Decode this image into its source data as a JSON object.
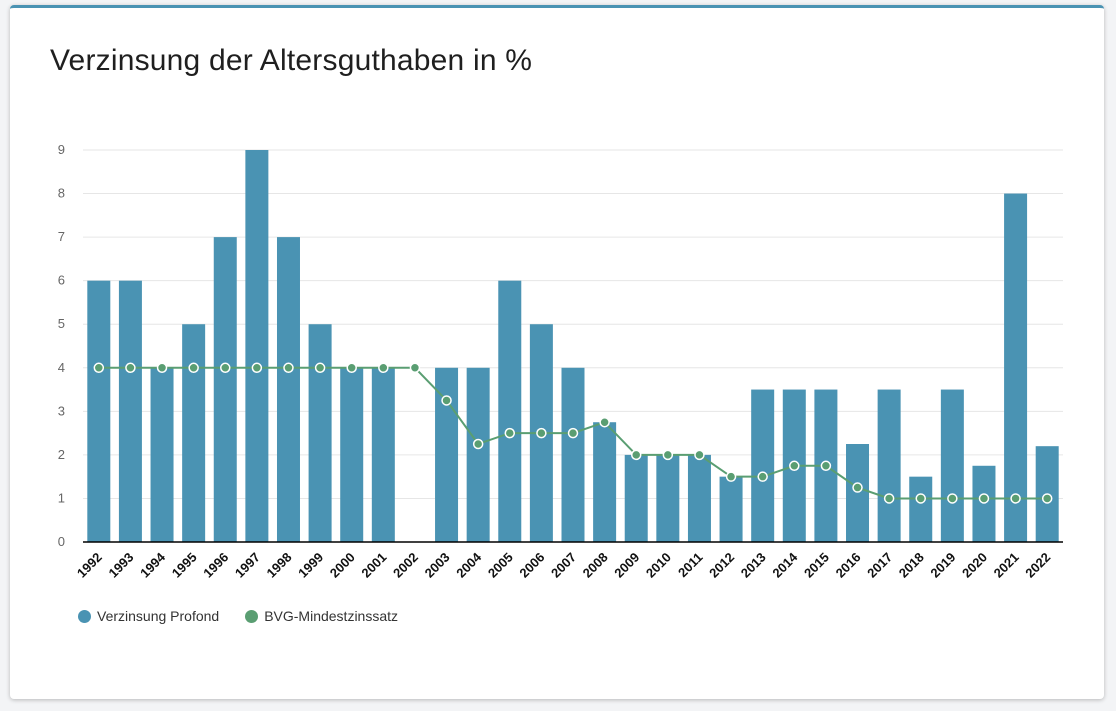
{
  "title": "Verzinsung der Altersguthaben in %",
  "colors": {
    "bar": "#4a93b3",
    "line": "#5a9e72"
  },
  "chart_data": {
    "type": "bar",
    "categories": [
      "1992",
      "1993",
      "1994",
      "1995",
      "1996",
      "1997",
      "1998",
      "1999",
      "2000",
      "2001",
      "2002",
      "2003",
      "2004",
      "2005",
      "2006",
      "2007",
      "2008",
      "2009",
      "2010",
      "2011",
      "2012",
      "2013",
      "2014",
      "2015",
      "2016",
      "2017",
      "2018",
      "2019",
      "2020",
      "2021",
      "2022"
    ],
    "series": [
      {
        "name": "Verzinsung Profond",
        "type": "bar",
        "values": [
          6,
          6,
          4,
          5,
          7,
          9,
          7,
          5,
          4,
          4,
          0,
          4,
          4,
          6,
          5,
          4,
          2.75,
          2,
          2,
          2,
          1.5,
          3.5,
          3.5,
          3.5,
          2.25,
          3.5,
          1.5,
          3.5,
          1.75,
          8,
          2.2
        ]
      },
      {
        "name": "BVG-Mindestzinssatz",
        "type": "line",
        "values": [
          4,
          4,
          4,
          4,
          4,
          4,
          4,
          4,
          4,
          4,
          4,
          3.25,
          2.25,
          2.5,
          2.5,
          2.5,
          2.75,
          2,
          2,
          2,
          1.5,
          1.5,
          1.75,
          1.75,
          1.25,
          1,
          1,
          1,
          1,
          1,
          1
        ]
      }
    ],
    "ylim": [
      0,
      9
    ],
    "yticks": [
      0,
      1,
      2,
      3,
      4,
      5,
      6,
      7,
      8,
      9
    ],
    "grid": true,
    "legend": "bottom-left"
  },
  "legend": {
    "items": [
      {
        "label": "Verzinsung Profond",
        "color": "#4a93b3"
      },
      {
        "label": "BVG-Mindestzinssatz",
        "color": "#5a9e72"
      }
    ]
  }
}
